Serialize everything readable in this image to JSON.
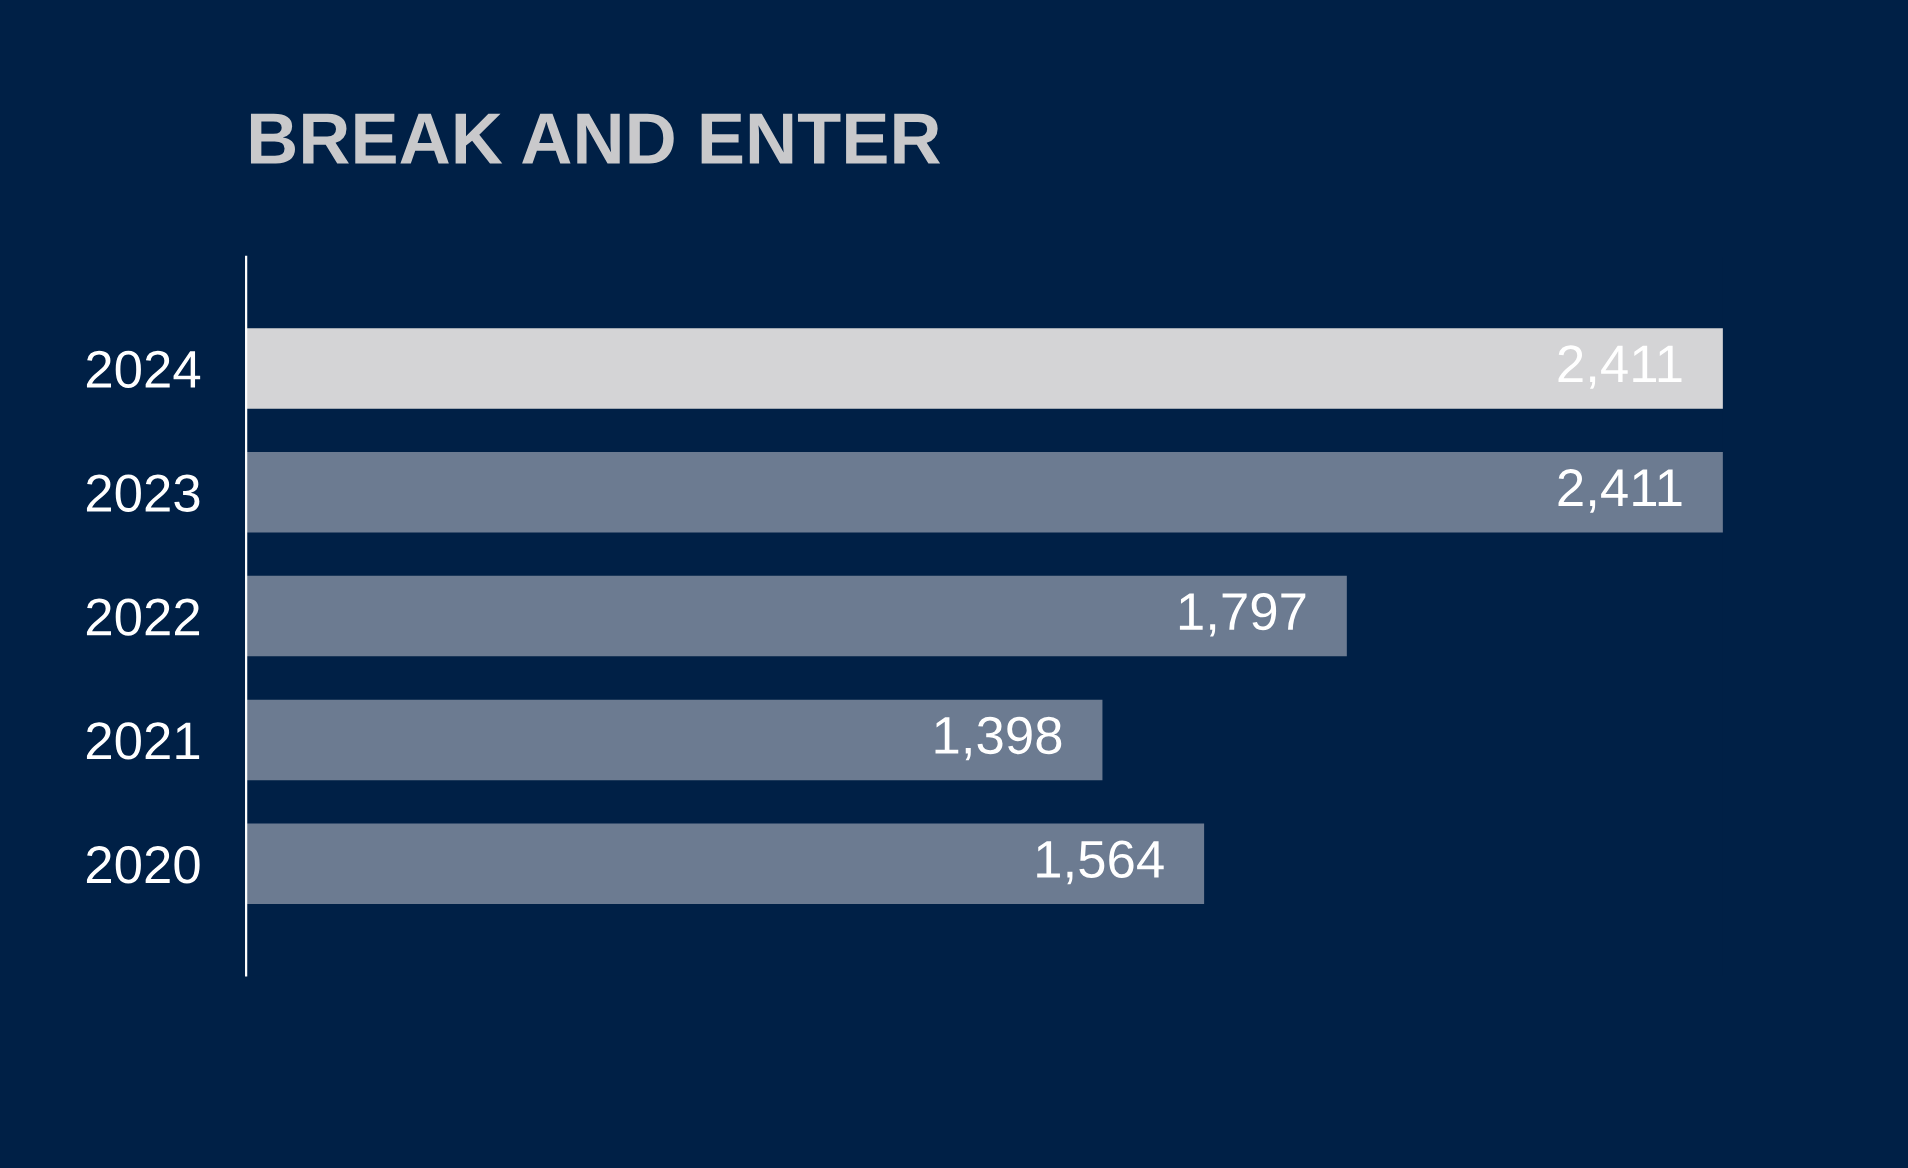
{
  "chart_data": {
    "type": "bar",
    "orientation": "horizontal",
    "title": "BREAK AND ENTER",
    "categories": [
      "2024",
      "2023",
      "2022",
      "2021",
      "2020"
    ],
    "values": [
      2411,
      2411,
      1797,
      1398,
      1564
    ],
    "colors": [
      "#d4d4d6",
      "#6c7b91",
      "#6c7b91",
      "#6c7b91",
      "#6c7b91"
    ],
    "value_labels": [
      "2,411",
      "2,411",
      "1,797",
      "1,398",
      "1,564"
    ],
    "grid": false
  }
}
